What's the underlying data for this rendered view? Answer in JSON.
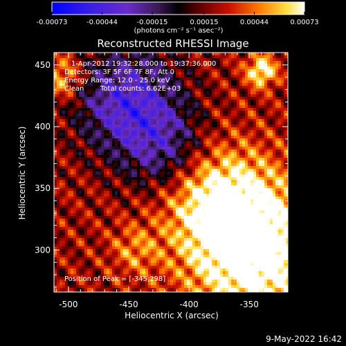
{
  "chart_data": {
    "type": "heatmap",
    "title": "Reconstructed RHESSI Image",
    "colorbar": {
      "ticks": [
        "-0.00073",
        "-0.00044",
        "-0.00015",
        "0.00015",
        "0.00044",
        "0.00073"
      ],
      "units_label": "(photons cm⁻² s⁻¹ asec⁻²)",
      "range": [
        -0.00073,
        0.00073
      ]
    },
    "xlabel": "Heliocentric X (arcsec)",
    "ylabel": "Heliocentric Y (arcsec)",
    "xlim": [
      -512,
      -318
    ],
    "ylim": [
      266,
      460
    ],
    "xticks": [
      -500,
      -450,
      -400,
      -350
    ],
    "yticks": [
      300,
      350,
      400,
      450
    ],
    "annotations": {
      "time_range": "1-Apr-2012 19:32:28.000 to 19:37:36.000",
      "detectors": "Detectors: 3F 5F 6F 7F 8F, Att 0",
      "energy_range": "Energy Range: 12.0 - 25.0 keV",
      "method": "Clean",
      "total_counts": "Total counts: 6.62E+03",
      "peak_position": "Position of Peak = [-345,298]"
    },
    "peak": [
      -345,
      298
    ],
    "sources": [
      {
        "x": -345,
        "y": 298,
        "intensity": 0.00073,
        "sigma": 40
      },
      {
        "x": -375,
        "y": 340,
        "intensity": 0.00055,
        "sigma": 30
      },
      {
        "x": -340,
        "y": 445,
        "intensity": 0.0006,
        "sigma": 9
      },
      {
        "x": -505,
        "y": 440,
        "intensity": 0.00045,
        "sigma": 12
      },
      {
        "x": -445,
        "y": 300,
        "intensity": 0.0003,
        "sigma": 14
      },
      {
        "x": -450,
        "y": 420,
        "intensity": -0.0006,
        "sigma": 30
      },
      {
        "x": -420,
        "y": 380,
        "intensity": -0.00035,
        "sigma": 25
      }
    ]
  },
  "footer": {
    "timestamp": "9-May-2022 16:42"
  }
}
